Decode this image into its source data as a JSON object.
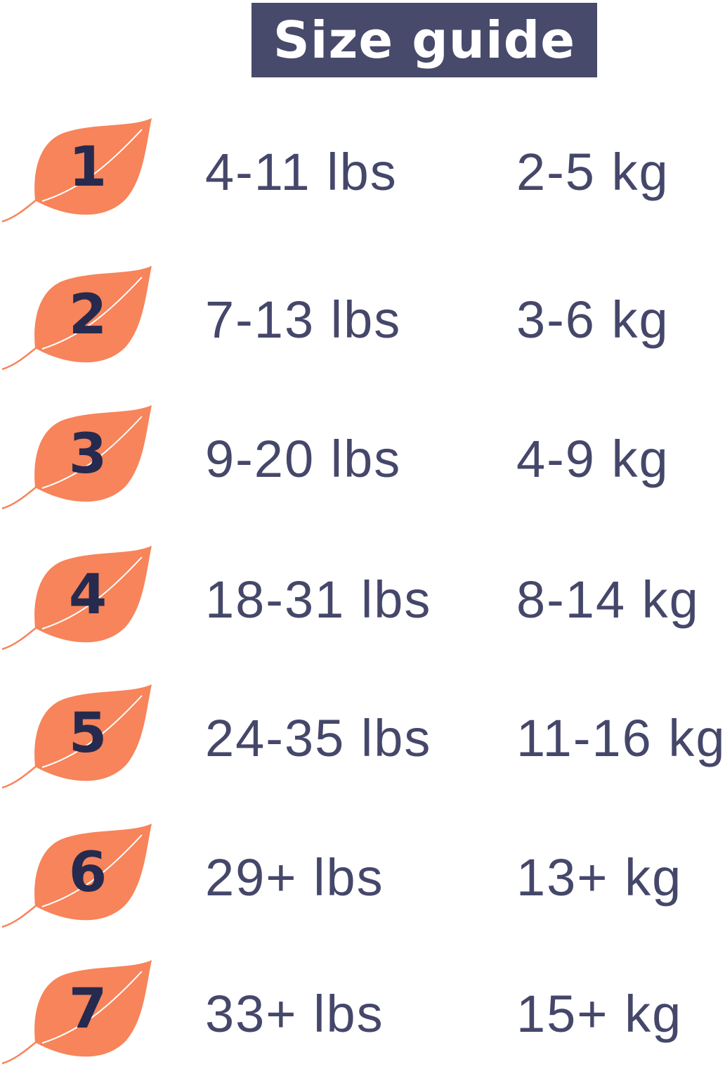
{
  "header": {
    "title": "Size guide"
  },
  "colors": {
    "leaf": "#f7845a",
    "number": "#262a4e",
    "text": "#45476a",
    "header_bg": "#474a6b"
  },
  "sizes": [
    {
      "size": "1",
      "lbs": "4-11 lbs",
      "kg": "2-5 kg"
    },
    {
      "size": "2",
      "lbs": "7-13 lbs",
      "kg": "3-6 kg"
    },
    {
      "size": "3",
      "lbs": "9-20 lbs",
      "kg": "4-9 kg"
    },
    {
      "size": "4",
      "lbs": "18-31 lbs",
      "kg": "8-14 kg"
    },
    {
      "size": "5",
      "lbs": "24-35 lbs",
      "kg": "11-16 kg"
    },
    {
      "size": "6",
      "lbs": "29+ lbs",
      "kg": "13+ kg"
    },
    {
      "size": "7",
      "lbs": "33+ lbs",
      "kg": "15+ kg"
    }
  ]
}
